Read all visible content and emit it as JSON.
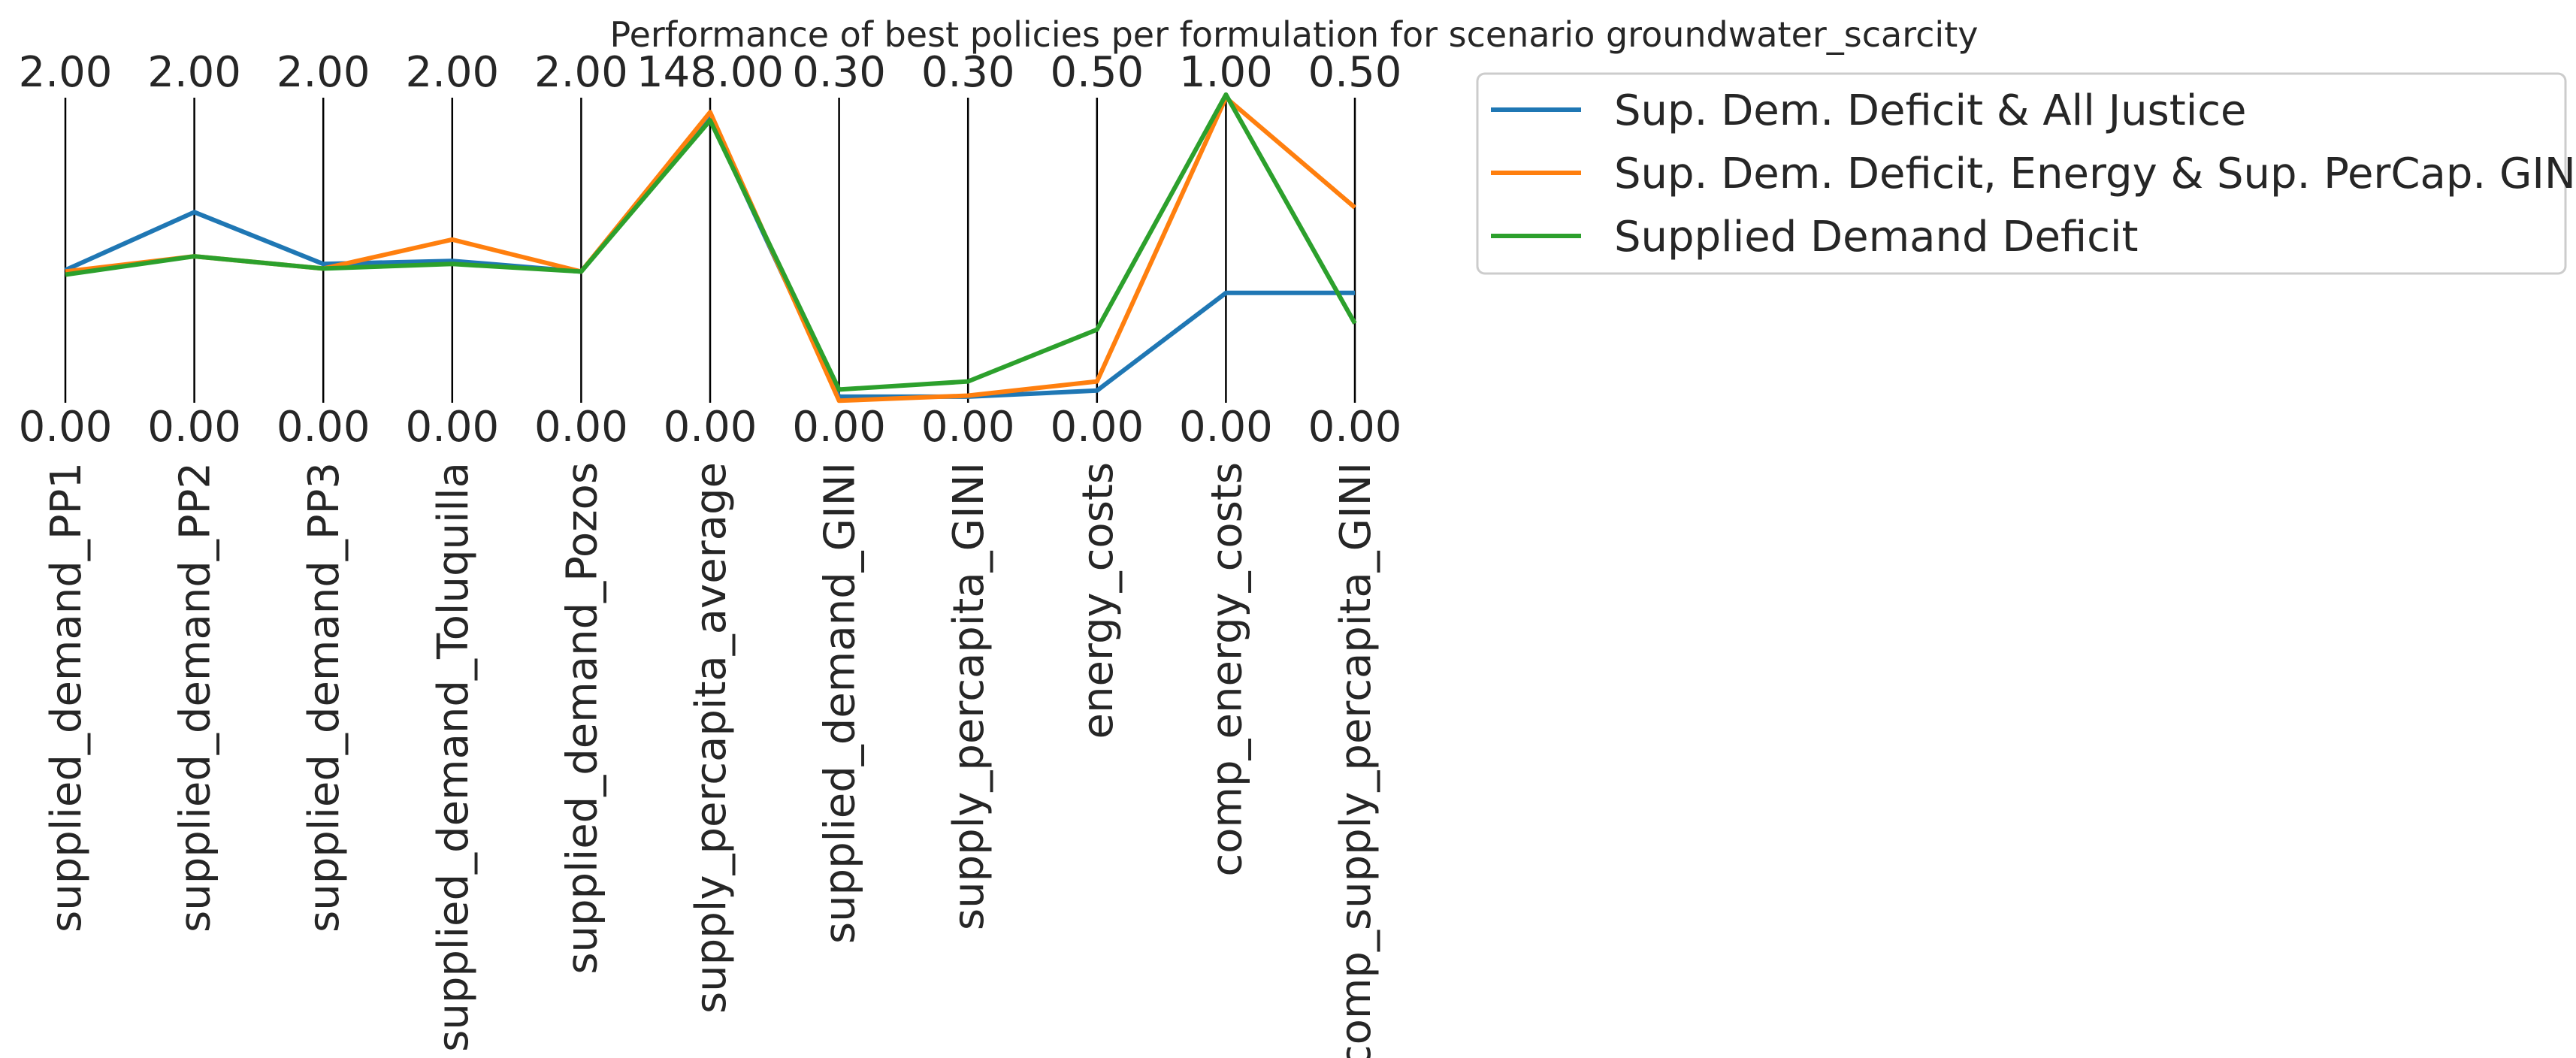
{
  "chart_data": {
    "type": "line",
    "title": "Performance of best policies per formulation for scenario groundwater_scarcity",
    "axes": [
      {
        "name": "supplied_demand_PP1",
        "max_label": "2.00",
        "min_label": "0.00",
        "max": 2.0,
        "min": 0.0
      },
      {
        "name": "supplied_demand_PP2",
        "max_label": "2.00",
        "min_label": "0.00",
        "max": 2.0,
        "min": 0.0
      },
      {
        "name": "supplied_demand_PP3",
        "max_label": "2.00",
        "min_label": "0.00",
        "max": 2.0,
        "min": 0.0
      },
      {
        "name": "supplied_demand_Toluquilla",
        "max_label": "2.00",
        "min_label": "0.00",
        "max": 2.0,
        "min": 0.0
      },
      {
        "name": "supplied_demand_Pozos",
        "max_label": "2.00",
        "min_label": "0.00",
        "max": 2.0,
        "min": 0.0
      },
      {
        "name": "supply_percapita_average",
        "max_label": "148.00",
        "min_label": "0.00",
        "max": 148.0,
        "min": 0.0
      },
      {
        "name": "supplied_demand_GINI",
        "max_label": "0.30",
        "min_label": "0.00",
        "max": 0.3,
        "min": 0.0
      },
      {
        "name": "supply_percapita_GINI",
        "max_label": "0.30",
        "min_label": "0.00",
        "max": 0.3,
        "min": 0.0
      },
      {
        "name": "energy_costs",
        "max_label": "0.50",
        "min_label": "0.00",
        "max": 0.5,
        "min": 0.0
      },
      {
        "name": "comp_energy_costs",
        "max_label": "1.00",
        "min_label": "0.00",
        "max": 1.0,
        "min": 0.0
      },
      {
        "name": "comp_supply_percapita_GINI",
        "max_label": "0.50",
        "min_label": "0.00",
        "max": 0.5,
        "min": 0.0
      }
    ],
    "series": [
      {
        "name": "Sup. Dem. Deficit & All Justice",
        "color": "#1f77b4",
        "values": [
          0.87,
          1.25,
          0.91,
          0.93,
          0.86,
          138.0,
          0.006,
          0.006,
          0.02,
          0.36,
          0.18
        ]
      },
      {
        "name": "Sup. Dem. Deficit, Energy & Sup. PerCap. GINI",
        "color": "#ff7f0e",
        "values": [
          0.86,
          0.96,
          0.88,
          1.07,
          0.86,
          141.0,
          0.002,
          0.007,
          0.035,
          1.0,
          0.32
        ]
      },
      {
        "name": "Supplied Demand Deficit",
        "color": "#2ca02c",
        "values": [
          0.84,
          0.96,
          0.88,
          0.91,
          0.86,
          137.0,
          0.013,
          0.021,
          0.12,
          1.01,
          0.13
        ]
      }
    ],
    "legend_position": "upper-right outside",
    "grid": false
  }
}
